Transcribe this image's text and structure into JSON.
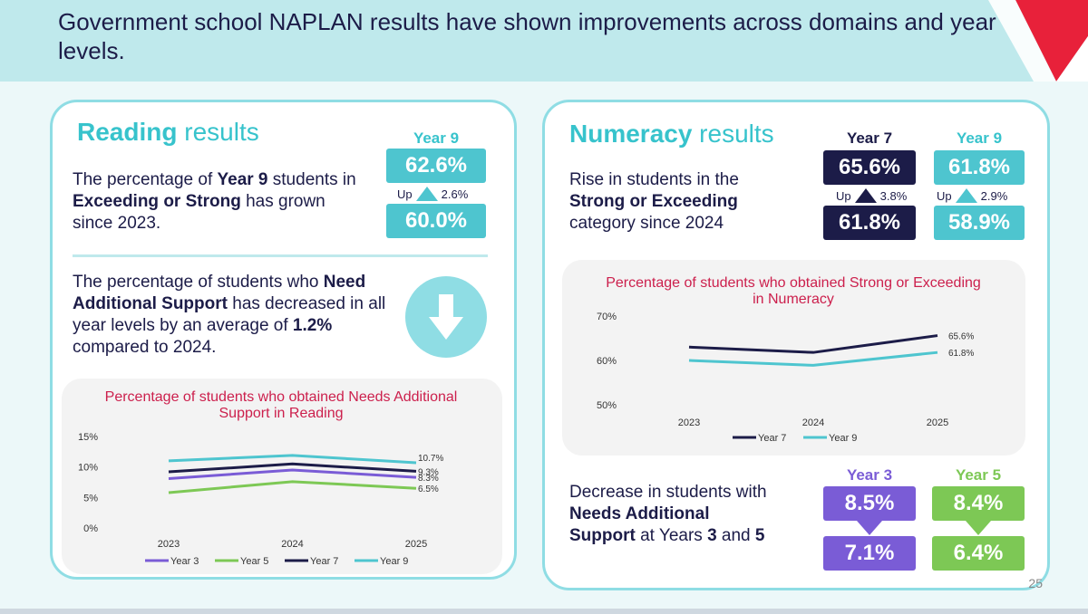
{
  "header": {
    "title": "Government school NAPLAN results have shown improvements across domains and year levels."
  },
  "reading": {
    "title_bold": "Reading",
    "title_rest": " results",
    "year_label": "Year 9",
    "current": "62.6%",
    "up_label": "Up",
    "change": "2.6%",
    "previous": "60.0%",
    "text1_a": "The percentage of ",
    "text1_b": "Year 9",
    "text1_c": " students in ",
    "text1_d": "Exceeding or Strong",
    "text1_e": " has grown since 2023.",
    "text2_a": "The percentage of students who ",
    "text2_b": "Need Additional Support",
    "text2_c": " has decreased in all year levels by an average of ",
    "text2_d": "1.2%",
    "text2_e": " compared to 2024."
  },
  "numeracy": {
    "title_bold": "Numeracy",
    "title_rest": " results",
    "text1_a": "Rise in students in the ",
    "text1_b": "Strong or Exceeding",
    "text1_c": " category since 2024",
    "y7_label": "Year 7",
    "y7_current": "65.6%",
    "y7_up": "Up",
    "y7_change": "3.8%",
    "y7_previous": "61.8%",
    "y9_label": "Year 9",
    "y9_current": "61.8%",
    "y9_up": "Up",
    "y9_change": "2.9%",
    "y9_previous": "58.9%",
    "text2_a": "Decrease in students with ",
    "text2_b": "Needs Additional Support",
    "text2_c": " at Years ",
    "text2_d": "3",
    "text2_e": " and ",
    "text2_f": "5",
    "y3_label": "Year 3",
    "y3_prev": "8.5%",
    "y3_now": "7.1%",
    "y5_label": "Year 5",
    "y5_prev": "8.4%",
    "y5_now": "6.4%"
  },
  "page_number": "25",
  "colors": {
    "teal": "#37c3cc",
    "navy": "#1c1c48",
    "purple": "#7a5cd6",
    "green": "#7dc855",
    "red": "#cc1f4c"
  },
  "chart_data": [
    {
      "type": "line",
      "title": "Percentage of students who obtained Needs Additional Support in Reading",
      "x": [
        "2023",
        "2024",
        "2025"
      ],
      "yticks": [
        "15%",
        "10%",
        "5%",
        "0%"
      ],
      "ylim": [
        0,
        15
      ],
      "series": [
        {
          "name": "Year 3",
          "color": "#7a5cd6",
          "values": [
            8.1,
            9.5,
            8.3
          ],
          "label": "8.3%"
        },
        {
          "name": "Year 5",
          "color": "#7dc855",
          "values": [
            5.8,
            7.6,
            6.5
          ],
          "label": "6.5%"
        },
        {
          "name": "Year 7",
          "color": "#1c1c48",
          "values": [
            9.2,
            10.5,
            9.3
          ],
          "label": "9.3%"
        },
        {
          "name": "Year 9",
          "color": "#4ec5cf",
          "values": [
            11.0,
            11.9,
            10.7
          ],
          "label": "10.7%"
        }
      ],
      "legend": "bottom"
    },
    {
      "type": "line",
      "title": "Percentage of students who obtained Strong or Exceeding in Numeracy",
      "x": [
        "2023",
        "2024",
        "2025"
      ],
      "yticks": [
        "70%",
        "60%",
        "50%"
      ],
      "ylim": [
        50,
        70
      ],
      "series": [
        {
          "name": "Year 7",
          "color": "#1c1c48",
          "values": [
            63.0,
            61.8,
            65.6
          ],
          "label": "65.6%"
        },
        {
          "name": "Year 9",
          "color": "#4ec5cf",
          "values": [
            60.0,
            58.9,
            61.8
          ],
          "label": "61.8%"
        }
      ],
      "legend": "bottom"
    }
  ]
}
